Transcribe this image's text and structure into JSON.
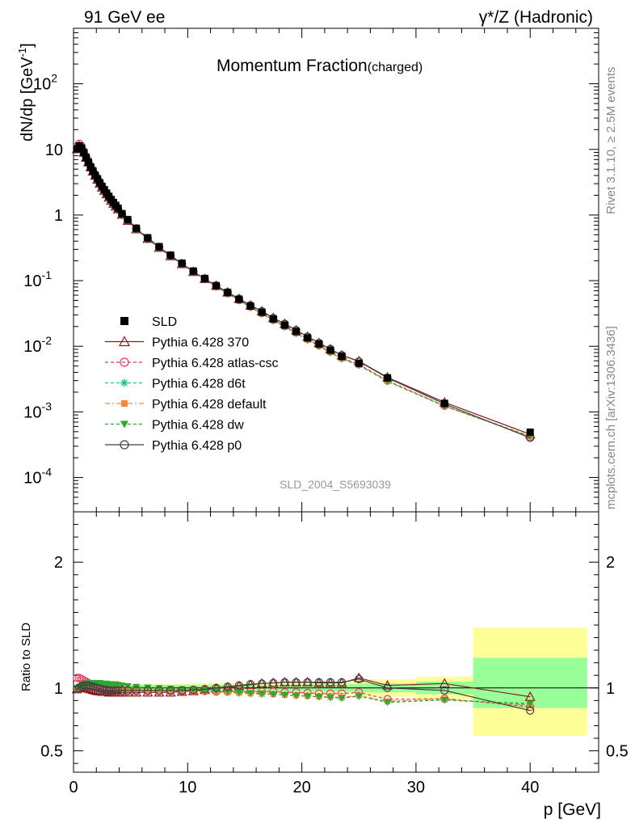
{
  "header": {
    "left": "91 GeV ee",
    "right": "γ*/Z (Hadronic)"
  },
  "side_labels": {
    "top": "Rivet 3.1.10, ≥ 2.5M events",
    "bottom": "mcplots.cern.ch [arXiv:1306.3436]"
  },
  "chart_data": {
    "type": "line",
    "title": "Momentum Fraction",
    "title_suffix": "(charged)",
    "analysis_id": "SLD_2004_S5693039",
    "xlabel": "p [GeV]",
    "ylabel_main": "dN/dp [GeV",
    "ylabel_main_sup": "-1",
    "ylabel_main_close": "]",
    "ylabel_ratio": "Ratio to SLD",
    "xlim": [
      0,
      46
    ],
    "ylim_main": [
      3e-05,
      700
    ],
    "y_scale_main": "log",
    "ylim_ratio": [
      0.33,
      2.4
    ],
    "x_ticks": [
      "0",
      "10",
      "20",
      "30",
      "40"
    ],
    "y_ticks_main": [
      {
        "base": "10",
        "exp": "-4",
        "v": 0.0001
      },
      {
        "base": "10",
        "exp": "-3",
        "v": 0.001
      },
      {
        "base": "10",
        "exp": "-2",
        "v": 0.01
      },
      {
        "base": "10",
        "exp": "-1",
        "v": 0.1
      },
      {
        "base": "1",
        "exp": "",
        "v": 1
      },
      {
        "base": "10",
        "exp": "",
        "v": 10
      },
      {
        "base": "10",
        "exp": "2",
        "v": 100
      }
    ],
    "y_ticks_ratio": [
      "0.5",
      "1",
      "2"
    ],
    "legend_placement": "middle-left",
    "data": {
      "name": "SLD",
      "x": [
        0.3,
        0.5,
        0.7,
        0.9,
        1.1,
        1.3,
        1.5,
        1.7,
        1.9,
        2.1,
        2.3,
        2.5,
        2.7,
        2.9,
        3.1,
        3.3,
        3.5,
        3.7,
        3.9,
        4.25,
        4.75,
        5.5,
        6.5,
        7.5,
        8.5,
        9.5,
        10.5,
        11.5,
        12.5,
        13.5,
        14.5,
        15.5,
        16.5,
        17.5,
        18.5,
        19.5,
        20.5,
        21.5,
        22.5,
        23.5,
        25.0,
        27.5,
        32.5,
        40.0
      ],
      "y": [
        10.2,
        11.3,
        10.5,
        8.9,
        7.5,
        6.4,
        5.4,
        4.7,
        4.05,
        3.55,
        3.1,
        2.72,
        2.42,
        2.15,
        1.92,
        1.72,
        1.55,
        1.4,
        1.27,
        1.05,
        0.85,
        0.63,
        0.45,
        0.33,
        0.245,
        0.185,
        0.14,
        0.108,
        0.084,
        0.066,
        0.052,
        0.041,
        0.033,
        0.026,
        0.021,
        0.0168,
        0.0134,
        0.0108,
        0.0087,
        0.007,
        0.0055,
        0.0033,
        0.00135,
        0.00049
      ],
      "marker": "square",
      "color": "#000000",
      "ratio_band_inner": [
        {
          "x0": 0.2,
          "x1": 20,
          "lo": 0.975,
          "hi": 1.025
        },
        {
          "x0": 20,
          "x1": 25,
          "lo": 0.97,
          "hi": 1.03
        },
        {
          "x0": 25,
          "x1": 30,
          "lo": 0.965,
          "hi": 1.035
        },
        {
          "x0": 30,
          "x1": 35,
          "lo": 0.95,
          "hi": 1.05
        },
        {
          "x0": 35,
          "x1": 45,
          "lo": 0.84,
          "hi": 1.24
        }
      ],
      "ratio_band_outer": [
        {
          "x0": 0.2,
          "x1": 10,
          "lo": 0.97,
          "hi": 1.03
        },
        {
          "x0": 10,
          "x1": 20,
          "lo": 0.96,
          "hi": 1.04
        },
        {
          "x0": 20,
          "x1": 25,
          "lo": 0.95,
          "hi": 1.05
        },
        {
          "x0": 25,
          "x1": 30,
          "lo": 0.93,
          "hi": 1.07
        },
        {
          "x0": 30,
          "x1": 35,
          "lo": 0.91,
          "hi": 1.09
        },
        {
          "x0": 35,
          "x1": 45,
          "lo": 0.62,
          "hi": 1.48
        }
      ],
      "band_colors": {
        "inner": "#99ff99",
        "outer": "#ffff99"
      }
    },
    "series": [
      {
        "name": "Pythia 6.428 370",
        "color": "#8b1a1a",
        "dash": "",
        "marker": "triangle-open",
        "x": [
          0.3,
          0.5,
          0.7,
          0.9,
          1.1,
          1.3,
          1.5,
          1.7,
          1.9,
          2.1,
          2.3,
          2.5,
          2.7,
          2.9,
          3.1,
          3.3,
          3.5,
          3.7,
          3.9,
          4.25,
          4.75,
          5.5,
          6.5,
          7.5,
          8.5,
          9.5,
          10.5,
          11.5,
          12.5,
          13.5,
          14.5,
          15.5,
          16.5,
          17.5,
          18.5,
          19.5,
          20.5,
          21.5,
          22.5,
          23.5,
          25.0,
          27.5,
          32.5,
          40.0
        ],
        "ratio": [
          0.99,
          1.0,
          1.01,
          1.01,
          1.0,
          0.995,
          0.99,
          0.985,
          0.98,
          0.975,
          0.975,
          0.97,
          0.97,
          0.97,
          0.965,
          0.965,
          0.965,
          0.965,
          0.965,
          0.965,
          0.965,
          0.965,
          0.965,
          0.965,
          0.965,
          0.97,
          0.975,
          0.985,
          0.995,
          1.005,
          1.015,
          1.025,
          1.035,
          1.04,
          1.045,
          1.045,
          1.045,
          1.04,
          1.04,
          1.04,
          1.08,
          1.02,
          1.035,
          0.93
        ]
      },
      {
        "name": "Pythia 6.428 atlas-csc",
        "color": "#e8385a",
        "dash": "4,3",
        "marker": "circle-open",
        "x": [
          0.3,
          0.5,
          0.7,
          0.9,
          1.1,
          1.3,
          1.5,
          1.7,
          1.9,
          2.1,
          2.3,
          2.5,
          2.7,
          2.9,
          3.1,
          3.3,
          3.5,
          3.7,
          3.9,
          4.25,
          4.75,
          5.5,
          6.5,
          7.5,
          8.5,
          9.5,
          10.5,
          11.5,
          12.5,
          13.5,
          14.5,
          15.5,
          16.5,
          17.5,
          18.5,
          19.5,
          20.5,
          21.5,
          22.5,
          23.5,
          25.0,
          27.5,
          32.5,
          40.0
        ],
        "ratio": [
          1.08,
          1.08,
          1.07,
          1.06,
          1.05,
          1.04,
          1.03,
          1.02,
          1.015,
          1.01,
          1.0,
          0.995,
          0.99,
          0.985,
          0.98,
          0.978,
          0.975,
          0.975,
          0.975,
          0.975,
          0.975,
          0.975,
          0.975,
          0.975,
          0.975,
          0.975,
          0.975,
          0.975,
          0.97,
          0.97,
          0.97,
          0.97,
          0.97,
          0.97,
          0.965,
          0.965,
          0.96,
          0.955,
          0.955,
          0.955,
          0.965,
          0.91,
          0.915,
          0.85
        ]
      },
      {
        "name": "Pythia 6.428 d6t",
        "color": "#1fbf8f",
        "dash": "4,3",
        "marker": "asterisk",
        "x": [
          0.3,
          0.5,
          0.7,
          0.9,
          1.1,
          1.3,
          1.5,
          1.7,
          1.9,
          2.1,
          2.3,
          2.5,
          2.7,
          2.9,
          3.1,
          3.3,
          3.5,
          3.7,
          3.9,
          4.25,
          4.75,
          5.5,
          6.5,
          7.5,
          8.5,
          9.5,
          10.5,
          11.5,
          12.5,
          13.5,
          14.5,
          15.5,
          16.5,
          17.5,
          18.5,
          19.5,
          20.5,
          21.5,
          22.5,
          23.5,
          25.0,
          27.5,
          32.5,
          40.0
        ],
        "ratio": [
          1.0,
          1.01,
          1.02,
          1.03,
          1.03,
          1.03,
          1.035,
          1.035,
          1.035,
          1.03,
          1.03,
          1.03,
          1.03,
          1.03,
          1.025,
          1.025,
          1.02,
          1.02,
          1.015,
          1.01,
          1.005,
          1.0,
          0.995,
          0.99,
          0.985,
          0.985,
          0.98,
          0.975,
          0.97,
          0.965,
          0.96,
          0.955,
          0.95,
          0.95,
          0.945,
          0.94,
          0.935,
          0.93,
          0.925,
          0.92,
          0.935,
          0.89,
          0.905,
          0.865
        ]
      },
      {
        "name": "Pythia 6.428 default",
        "color": "#f58a3a",
        "dash": "6,3,2,3",
        "marker": "square-filled",
        "x": [
          0.3,
          0.5,
          0.7,
          0.9,
          1.1,
          1.3,
          1.5,
          1.7,
          1.9,
          2.1,
          2.3,
          2.5,
          2.7,
          2.9,
          3.1,
          3.3,
          3.5,
          3.7,
          3.9,
          4.25,
          4.75,
          5.5,
          6.5,
          7.5,
          8.5,
          9.5,
          10.5,
          11.5,
          12.5,
          13.5,
          14.5,
          15.5,
          16.5,
          17.5,
          18.5,
          19.5,
          20.5,
          21.5,
          22.5,
          23.5,
          25.0,
          27.5,
          32.5,
          40.0
        ],
        "ratio": [
          1.0,
          1.01,
          1.02,
          1.025,
          1.025,
          1.025,
          1.025,
          1.025,
          1.02,
          1.02,
          1.015,
          1.015,
          1.01,
          1.01,
          1.005,
          1.005,
          1.0,
          1.0,
          0.995,
          0.995,
          0.99,
          0.99,
          0.985,
          0.985,
          0.98,
          0.98,
          0.975,
          0.975,
          0.97,
          0.965,
          0.96,
          0.955,
          0.955,
          0.95,
          0.945,
          0.94,
          0.935,
          0.93,
          0.93,
          0.925,
          0.94,
          0.895,
          0.91,
          0.86
        ]
      },
      {
        "name": "Pythia 6.428 dw",
        "color": "#2ea82e",
        "dash": "4,3",
        "marker": "triangle-down-filled",
        "x": [
          0.3,
          0.5,
          0.7,
          0.9,
          1.1,
          1.3,
          1.5,
          1.7,
          1.9,
          2.1,
          2.3,
          2.5,
          2.7,
          2.9,
          3.1,
          3.3,
          3.5,
          3.7,
          3.9,
          4.25,
          4.75,
          5.5,
          6.5,
          7.5,
          8.5,
          9.5,
          10.5,
          11.5,
          12.5,
          13.5,
          14.5,
          15.5,
          16.5,
          17.5,
          18.5,
          19.5,
          20.5,
          21.5,
          22.5,
          23.5,
          25.0,
          27.5,
          32.5,
          40.0
        ],
        "ratio": [
          1.0,
          1.01,
          1.02,
          1.03,
          1.035,
          1.04,
          1.04,
          1.04,
          1.04,
          1.04,
          1.04,
          1.035,
          1.035,
          1.035,
          1.03,
          1.03,
          1.03,
          1.03,
          1.025,
          1.02,
          1.015,
          1.01,
          1.005,
          1.0,
          0.995,
          0.99,
          0.985,
          0.98,
          0.975,
          0.97,
          0.965,
          0.96,
          0.955,
          0.95,
          0.945,
          0.94,
          0.935,
          0.93,
          0.925,
          0.92,
          0.935,
          0.885,
          0.905,
          0.875
        ]
      },
      {
        "name": "Pythia 6.428 p0",
        "color": "#404040",
        "dash": "",
        "marker": "circle-open",
        "x": [
          0.3,
          0.5,
          0.7,
          0.9,
          1.1,
          1.3,
          1.5,
          1.7,
          1.9,
          2.1,
          2.3,
          2.5,
          2.7,
          2.9,
          3.1,
          3.3,
          3.5,
          3.7,
          3.9,
          4.25,
          4.75,
          5.5,
          6.5,
          7.5,
          8.5,
          9.5,
          10.5,
          11.5,
          12.5,
          13.5,
          14.5,
          15.5,
          16.5,
          17.5,
          18.5,
          19.5,
          20.5,
          21.5,
          22.5,
          23.5,
          25.0,
          27.5,
          32.5,
          40.0
        ],
        "ratio": [
          0.99,
          1.0,
          1.01,
          1.02,
          1.02,
          1.02,
          1.015,
          1.01,
          1.005,
          1.0,
          0.995,
          0.99,
          0.985,
          0.985,
          0.98,
          0.98,
          0.98,
          0.98,
          0.98,
          0.98,
          0.98,
          0.98,
          0.98,
          0.98,
          0.98,
          0.98,
          0.985,
          0.99,
          1.0,
          1.01,
          1.02,
          1.03,
          1.035,
          1.04,
          1.045,
          1.045,
          1.045,
          1.045,
          1.045,
          1.045,
          1.07,
          1.0,
          0.98,
          0.82
        ]
      }
    ]
  }
}
